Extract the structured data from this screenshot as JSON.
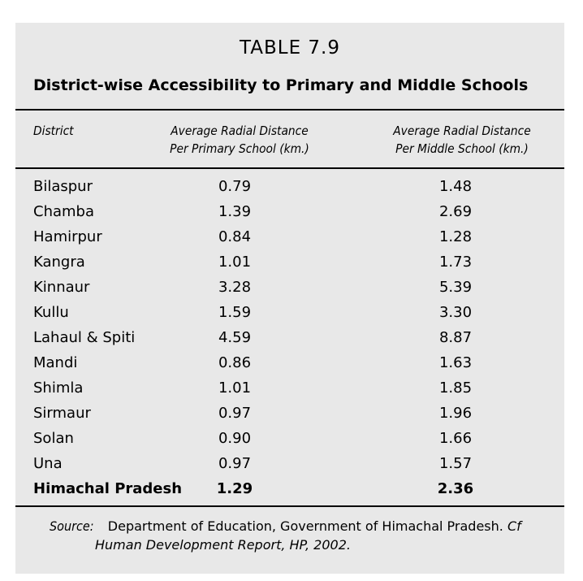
{
  "table": {
    "number": "TABLE 7.9",
    "title": "District-wise Accessibility to Primary and Middle Schools",
    "headers": {
      "district": "District",
      "primary_line1": "Average Radial Distance",
      "primary_line2": "Per Primary School (km.)",
      "middle_line1": "Average Radial Distance",
      "middle_line2": "Per Middle School (km.)"
    },
    "rows": [
      {
        "district": "Bilaspur",
        "primary": "0.79",
        "middle": "1.48"
      },
      {
        "district": "Chamba",
        "primary": "1.39",
        "middle": "2.69"
      },
      {
        "district": "Hamirpur",
        "primary": "0.84",
        "middle": "1.28"
      },
      {
        "district": "Kangra",
        "primary": "1.01",
        "middle": "1.73"
      },
      {
        "district": "Kinnaur",
        "primary": "3.28",
        "middle": "5.39"
      },
      {
        "district": "Kullu",
        "primary": "1.59",
        "middle": "3.30"
      },
      {
        "district": "Lahaul & Spiti",
        "primary": "4.59",
        "middle": "8.87"
      },
      {
        "district": "Mandi",
        "primary": "0.86",
        "middle": "1.63"
      },
      {
        "district": "Shimla",
        "primary": "1.01",
        "middle": "1.85"
      },
      {
        "district": "Sirmaur",
        "primary": "0.97",
        "middle": "1.96"
      },
      {
        "district": "Solan",
        "primary": "0.90",
        "middle": "1.66"
      },
      {
        "district": "Una",
        "primary": "0.97",
        "middle": "1.57"
      }
    ],
    "total": {
      "district": "Himachal Pradesh",
      "primary": "1.29",
      "middle": "2.36"
    },
    "source": {
      "label": "Source:",
      "text": "Department of Education, Government of Himachal Pradesh.",
      "cf": "Cf",
      "reference": "Human Development Report, HP, 2002."
    }
  }
}
